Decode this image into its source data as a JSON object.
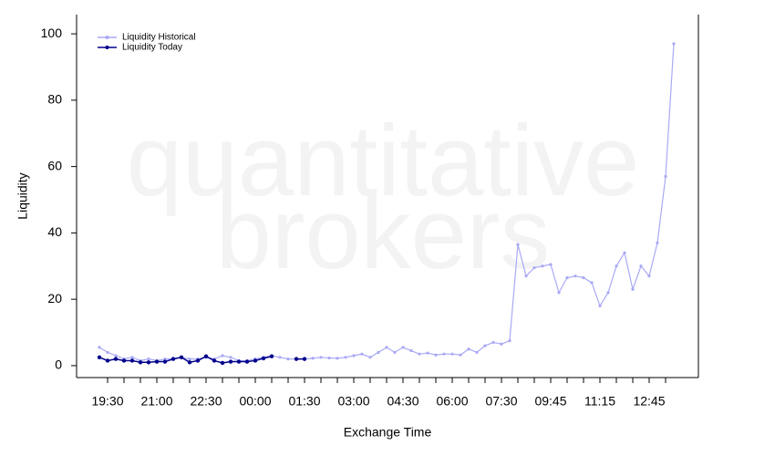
{
  "chart_data": {
    "type": "line",
    "watermark": [
      "quantitative",
      "brokers"
    ],
    "xlabel": "Exchange Time",
    "ylabel": "Liquidity",
    "categories": [
      null,
      "19:30",
      null,
      null,
      null,
      null,
      null,
      "21:00",
      null,
      null,
      null,
      null,
      null,
      "22:30",
      null,
      null,
      null,
      null,
      null,
      "00:00",
      null,
      null,
      null,
      null,
      null,
      "01:30",
      null,
      null,
      null,
      null,
      null,
      "03:00",
      null,
      null,
      null,
      null,
      null,
      "04:30",
      null,
      null,
      null,
      null,
      null,
      "06:00",
      null,
      null,
      null,
      null,
      null,
      "07:30",
      null,
      null,
      null,
      null,
      null,
      "09:45",
      null,
      null,
      null,
      null,
      null,
      "11:15",
      null,
      null,
      null,
      null,
      null,
      "12:45",
      null,
      null,
      null
    ],
    "series": [
      {
        "name": "Liquidity Historical",
        "color": "#a9a9f5",
        "values": [
          5.5,
          4,
          3,
          2,
          2.5,
          1.5,
          2,
          1.5,
          2,
          2,
          2.5,
          2,
          2,
          2.5,
          2,
          3,
          2.5,
          1.5,
          1.5,
          2,
          2.5,
          3,
          2.5,
          2,
          2,
          2,
          2.2,
          2.5,
          2.3,
          2.2,
          2.5,
          3,
          3.5,
          2.5,
          4,
          5.5,
          4,
          5.5,
          4.5,
          3.5,
          3.8,
          3.2,
          3.5,
          3.5,
          3.2,
          5,
          4,
          6,
          7,
          6.5,
          7.5,
          36.5,
          27,
          29.5,
          30,
          30.5,
          22,
          26.5,
          27,
          26.5,
          25,
          18,
          22,
          30,
          34,
          23,
          30,
          27,
          37,
          57,
          97
        ]
      },
      {
        "name": "Liquidity Today",
        "color": "#00008b",
        "values": [
          2.5,
          1.5,
          2,
          1.5,
          1.5,
          1,
          1,
          1.2,
          1.2,
          2,
          2.5,
          1,
          1.5,
          2.8,
          1.5,
          0.8,
          1.2,
          1.2,
          1.2,
          1.5,
          2.2,
          2.8,
          null,
          null,
          2,
          2,
          null,
          null,
          null,
          null,
          null,
          null,
          null,
          null,
          null,
          null,
          null,
          null,
          null,
          null,
          null,
          null,
          null,
          null,
          null,
          null,
          null,
          null,
          null,
          null,
          null,
          null,
          null,
          null,
          null,
          null,
          null,
          null,
          null,
          null,
          null,
          null,
          null,
          null,
          null,
          null,
          null,
          null,
          null,
          null,
          null
        ]
      }
    ],
    "ylim": [
      -3.6,
      105.8
    ],
    "yticks": [
      0,
      20,
      40,
      60,
      80,
      100
    ],
    "legend": "upper left",
    "grid": false
  }
}
